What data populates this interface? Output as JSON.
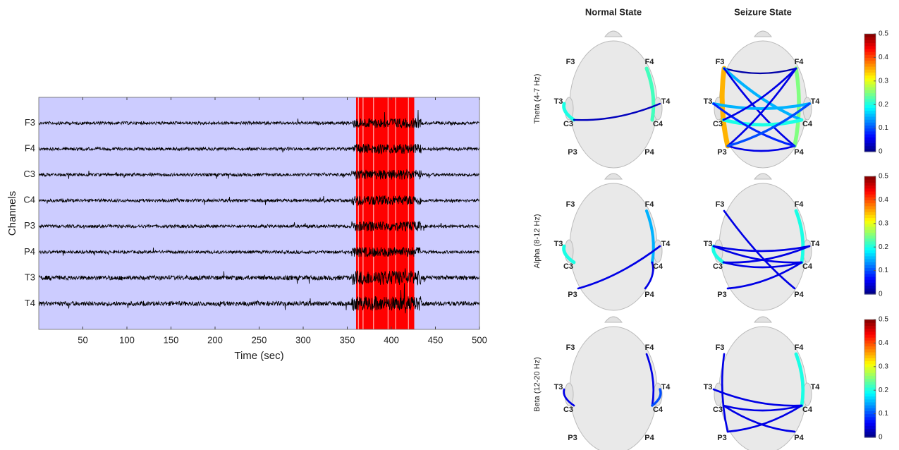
{
  "chart_data": [
    {
      "type": "eeg",
      "xlabel": "Time (sec)",
      "ylabel": "Channels",
      "categories": [
        "F3",
        "F4",
        "C3",
        "C4",
        "P3",
        "P4",
        "T3",
        "T4"
      ],
      "xlim": [
        0,
        500
      ],
      "xticks": [
        50,
        100,
        150,
        200,
        250,
        300,
        350,
        400,
        450,
        500
      ],
      "highlight": [
        360,
        426
      ],
      "background": "#ccccff",
      "highlight_color": "#ff0000",
      "trace_color": "#000000"
    },
    {
      "type": "connectivity",
      "columns": [
        "Normal State",
        "Seizure State"
      ],
      "electrodes": [
        "F3",
        "F4",
        "T3",
        "T4",
        "C3",
        "C4",
        "P3",
        "P4"
      ],
      "clim": [
        0,
        0.5
      ],
      "cticks": [
        0,
        0.1,
        0.2,
        0.3,
        0.4,
        0.5
      ],
      "rows": [
        {
          "name": "Theta (4-7 Hz)",
          "normal": [
            {
              "from": "F4",
              "to": "C4",
              "value": 0.22
            },
            {
              "from": "T3",
              "to": "C3",
              "value": 0.2
            },
            {
              "from": "C3",
              "to": "T4",
              "value": 0.03
            }
          ],
          "seizure": [
            {
              "from": "F3",
              "to": "P3",
              "value": 0.35
            },
            {
              "from": "F4",
              "to": "P4",
              "value": 0.25
            },
            {
              "from": "F3",
              "to": "F4",
              "value": 0.02
            },
            {
              "from": "F3",
              "to": "C4",
              "value": 0.15
            },
            {
              "from": "F3",
              "to": "P4",
              "value": 0.05
            },
            {
              "from": "T3",
              "to": "T4",
              "value": 0.15
            },
            {
              "from": "C3",
              "to": "C4",
              "value": 0.2
            },
            {
              "from": "P3",
              "to": "P4",
              "value": 0.05
            },
            {
              "from": "F4",
              "to": "P3",
              "value": 0.05
            },
            {
              "from": "T3",
              "to": "P4",
              "value": 0.08
            },
            {
              "from": "T4",
              "to": "P3",
              "value": 0.1
            },
            {
              "from": "F4",
              "to": "C3",
              "value": 0.05
            }
          ]
        },
        {
          "name": "Alpha (8-12 Hz)",
          "normal": [
            {
              "from": "F4",
              "to": "C4",
              "value": 0.15
            },
            {
              "from": "T3",
              "to": "C3",
              "value": 0.2
            },
            {
              "from": "P3",
              "to": "T4",
              "value": 0.05
            },
            {
              "from": "C4",
              "to": "P4",
              "value": 0.05
            }
          ],
          "seizure": [
            {
              "from": "F4",
              "to": "C4",
              "value": 0.2
            },
            {
              "from": "T3",
              "to": "C3",
              "value": 0.2
            },
            {
              "from": "F3",
              "to": "P4",
              "value": 0.05
            },
            {
              "from": "T3",
              "to": "T4",
              "value": 0.05
            },
            {
              "from": "C3",
              "to": "C4",
              "value": 0.05
            },
            {
              "from": "T3",
              "to": "C4",
              "value": 0.05
            },
            {
              "from": "C3",
              "to": "T4",
              "value": 0.05
            },
            {
              "from": "P3",
              "to": "C4",
              "value": 0.05
            }
          ]
        },
        {
          "name": "Beta (12-20 Hz)",
          "normal": [
            {
              "from": "F4",
              "to": "C4",
              "value": 0.05
            },
            {
              "from": "T3",
              "to": "C3",
              "value": 0.05
            },
            {
              "from": "T4",
              "to": "C4",
              "value": 0.1
            }
          ],
          "seizure": [
            {
              "from": "F3",
              "to": "P3",
              "value": 0.05
            },
            {
              "from": "F4",
              "to": "C4",
              "value": 0.2
            },
            {
              "from": "T3",
              "to": "C4",
              "value": 0.05
            },
            {
              "from": "C3",
              "to": "C4",
              "value": 0.05
            },
            {
              "from": "P3",
              "to": "C4",
              "value": 0.05
            },
            {
              "from": "C3",
              "to": "P4",
              "value": 0.05
            }
          ]
        }
      ]
    }
  ]
}
